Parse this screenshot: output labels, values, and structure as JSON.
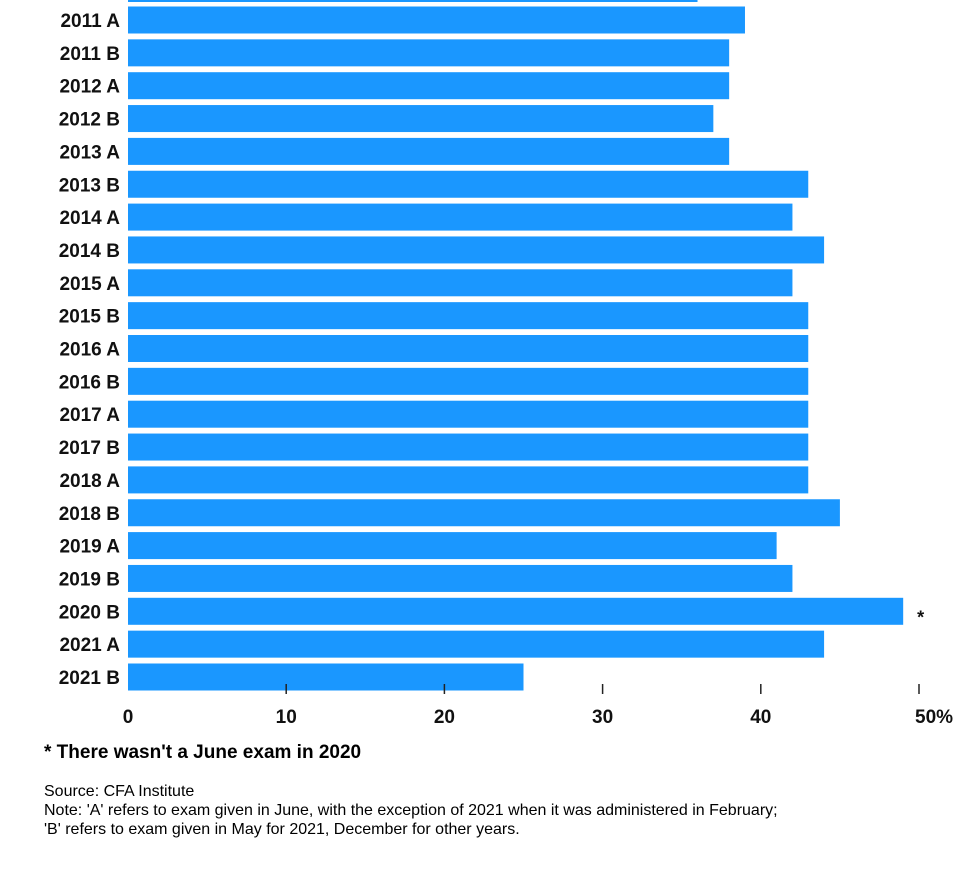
{
  "chart_data": {
    "type": "bar",
    "orientation": "horizontal",
    "categories": [
      "2011 A",
      "2011 B",
      "2012 A",
      "2012 B",
      "2013 A",
      "2013 B",
      "2014 A",
      "2014 B",
      "2015 A",
      "2015 B",
      "2016 A",
      "2016 B",
      "2017 A",
      "2017 B",
      "2018 A",
      "2018 B",
      "2019 A",
      "2019 B",
      "2020 B",
      "2021 A",
      "2021 B"
    ],
    "values": [
      39,
      38,
      38,
      37,
      38,
      43,
      42,
      44,
      42,
      43,
      43,
      43,
      43,
      43,
      43,
      45,
      41,
      42,
      49,
      44,
      25
    ],
    "partial_bar_above_value": 36,
    "xlim": [
      0,
      50
    ],
    "xticks": [
      0,
      10,
      20,
      30,
      40,
      50
    ],
    "xtick_labels": [
      "0",
      "10",
      "20",
      "30",
      "40",
      "50%"
    ],
    "bar_color": "#1a97ff",
    "annotations": [
      {
        "category": "2020 B",
        "text": "*"
      }
    ],
    "grid": false,
    "legend": "none"
  },
  "footnote": "* There wasn't a June exam in 2020",
  "source": "Source: CFA Institute",
  "note": "Note: 'A' refers to exam given in June, with the exception of 2021 when it was administered in February;\n'B' refers to exam given in May for 2021, December for other years."
}
